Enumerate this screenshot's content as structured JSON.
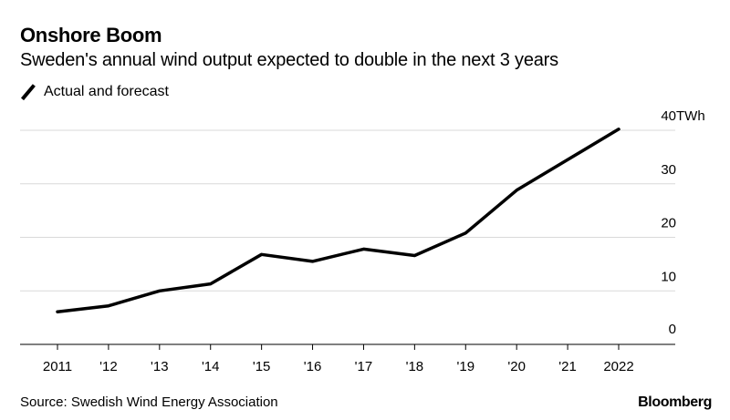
{
  "header": {
    "title": "Onshore Boom",
    "subtitle": "Sweden's annual wind output expected to double in the next 3 years"
  },
  "legend": {
    "label": "Actual and forecast"
  },
  "footer": {
    "source": "Source: Swedish Wind Energy Association",
    "brand": "Bloomberg"
  },
  "chart_data": {
    "type": "line",
    "title": "Onshore Boom",
    "subtitle": "Sweden's annual wind output expected to double in the next 3 years",
    "xlabel": "",
    "ylabel": "",
    "unit_label": "TWh",
    "categories": [
      "2011",
      "'12",
      "'13",
      "'14",
      "'15",
      "'16",
      "'17",
      "'18",
      "'19",
      "'20",
      "'21",
      "2022"
    ],
    "series": [
      {
        "name": "Actual and forecast",
        "values": [
          6.1,
          7.2,
          10.0,
          11.3,
          16.8,
          15.5,
          17.8,
          16.6,
          20.8,
          28.8,
          34.5,
          40.2
        ]
      }
    ],
    "y_ticks": [
      0,
      10,
      20,
      30,
      40
    ],
    "ylim": [
      0,
      40
    ],
    "grid": true,
    "legend_position": "top-left",
    "line_color": "#000000",
    "grid_color": "#d9d9d9"
  }
}
